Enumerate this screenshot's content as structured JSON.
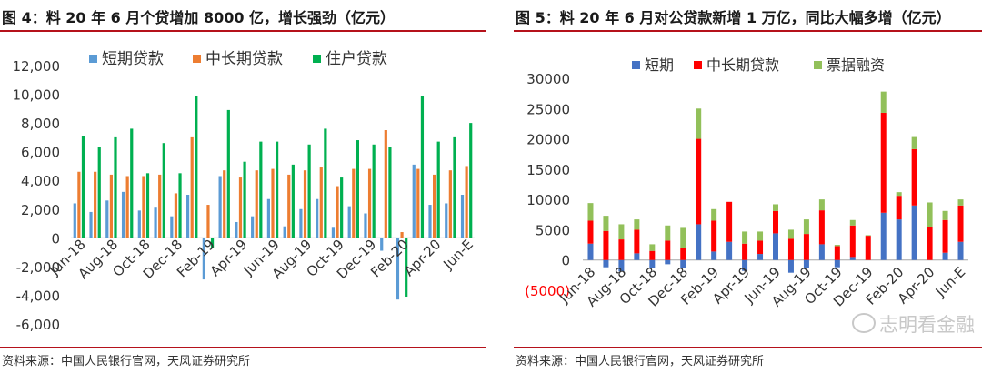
{
  "left": {
    "title": "图 4：料 20 年 6 月个贷增加 8000 亿，增长强劲（亿元）",
    "source": "资料来源：中国人民银行官网，天风证券研究所"
  },
  "right": {
    "title": "图 5：料 20 年 6 月对公贷款新增 1 万亿，同比大幅多增（亿元）",
    "source": "资料来源：中国人民银行官网，天风证券研究所"
  },
  "watermark": "志明看金融",
  "colors": {
    "left_short": "#5b9bd5",
    "left_mid": "#ed7d31",
    "left_home": "#00b050",
    "right_short": "#4472c4",
    "right_mid": "#ff0000",
    "right_bill": "#92c05a",
    "rule": "#b5121b"
  },
  "chart_data": [
    {
      "type": "bar",
      "categories": [
        "Jun-18",
        "Jul-18",
        "Aug-18",
        "Sep-18",
        "Oct-18",
        "Nov-18",
        "Dec-18",
        "Jan-19",
        "Feb-19",
        "Mar-19",
        "Apr-19",
        "May-19",
        "Jun-19",
        "Jul-19",
        "Aug-19",
        "Sep-19",
        "Oct-19",
        "Nov-19",
        "Dec-19",
        "Jan-20",
        "Feb-20",
        "Mar-20",
        "Apr-20",
        "May-20",
        "Jun-E"
      ],
      "x_tick_labels": [
        "Jun-18",
        "Aug-18",
        "Oct-18",
        "Dec-18",
        "Feb-19",
        "Apr-19",
        "Jun-19",
        "Aug-19",
        "Oct-19",
        "Dec-19",
        "Feb-20",
        "Apr-20",
        "Jun-E"
      ],
      "series": [
        {
          "name": "短期贷款",
          "values": [
            2400,
            1800,
            2600,
            3200,
            1900,
            2100,
            1500,
            3000,
            -2900,
            4300,
            1100,
            1500,
            2700,
            800,
            2000,
            2700,
            700,
            2200,
            1700,
            -900,
            -4300,
            5100,
            2300,
            2400,
            3000
          ]
        },
        {
          "name": "中长期贷款",
          "values": [
            4600,
            4600,
            4400,
            4300,
            4300,
            4400,
            3100,
            7000,
            2300,
            4700,
            4200,
            4700,
            4800,
            4400,
            4700,
            4900,
            3600,
            4800,
            4800,
            7500,
            400,
            4800,
            4400,
            4700,
            5000
          ]
        },
        {
          "name": "住户贷款",
          "values": [
            7100,
            6300,
            7000,
            7600,
            4500,
            6600,
            4500,
            9900,
            -700,
            8900,
            5300,
            6700,
            6700,
            5100,
            6500,
            7600,
            4200,
            6800,
            6500,
            6300,
            -4100,
            9900,
            6700,
            7000,
            8000
          ]
        }
      ],
      "legend_position": "top",
      "ylim": [
        -6000,
        12000
      ],
      "y_ticks": [
        "12,000",
        "10,000",
        "8,000",
        "6,000",
        "4,000",
        "2,000",
        "0",
        "-2,000",
        "-4,000",
        "-6,000"
      ],
      "y_tick_values": [
        12000,
        10000,
        8000,
        6000,
        4000,
        2000,
        0,
        -2000,
        -4000,
        -6000
      ],
      "grid": false
    },
    {
      "type": "bar",
      "stacked": true,
      "categories": [
        "Jun-18",
        "Jul-18",
        "Aug-18",
        "Sep-18",
        "Oct-18",
        "Nov-18",
        "Dec-18",
        "Jan-19",
        "Feb-19",
        "Mar-19",
        "Apr-19",
        "May-19",
        "Jun-19",
        "Jul-19",
        "Aug-19",
        "Sep-19",
        "Oct-19",
        "Nov-19",
        "Dec-19",
        "Jan-20",
        "Feb-20",
        "Mar-20",
        "Apr-20",
        "May-20",
        "Jun-E"
      ],
      "x_tick_labels": [
        "Jun-18",
        "Aug-18",
        "Oct-18",
        "Dec-18",
        "Feb-19",
        "Apr-19",
        "Jun-19",
        "Aug-19",
        "Oct-19",
        "Dec-19",
        "Feb-20",
        "Apr-20",
        "Jun-E"
      ],
      "series": [
        {
          "name": "短期",
          "values": [
            2700,
            -1200,
            -1900,
            1100,
            -1300,
            -700,
            -1300,
            5900,
            1400,
            3000,
            -1800,
            1000,
            4400,
            -2100,
            -1300,
            2600,
            -1200,
            500,
            0,
            7800,
            6700,
            9000,
            0,
            1200,
            3000
          ]
        },
        {
          "name": "中长期贷款",
          "values": [
            3800,
            4800,
            3400,
            3900,
            1500,
            3200,
            2000,
            14100,
            5100,
            6600,
            2700,
            2200,
            3700,
            3500,
            4300,
            5600,
            2300,
            5200,
            4000,
            16500,
            3900,
            9300,
            5400,
            5400,
            6000
          ]
        },
        {
          "name": "票据融资",
          "values": [
            2900,
            2500,
            2500,
            1700,
            1100,
            2500,
            3300,
            5000,
            1900,
            0,
            2000,
            1500,
            1100,
            1500,
            2400,
            1800,
            200,
            900,
            100,
            3500,
            600,
            2000,
            4100,
            1500,
            1000
          ]
        }
      ],
      "legend_position": "top",
      "ylim": [
        -5000,
        30000
      ],
      "y_ticks": [
        "30000",
        "25000",
        "20000",
        "15000",
        "10000",
        "5000",
        "0",
        "(5000)"
      ],
      "y_tick_values": [
        30000,
        25000,
        20000,
        15000,
        10000,
        5000,
        0,
        -5000
      ],
      "grid": false
    }
  ]
}
